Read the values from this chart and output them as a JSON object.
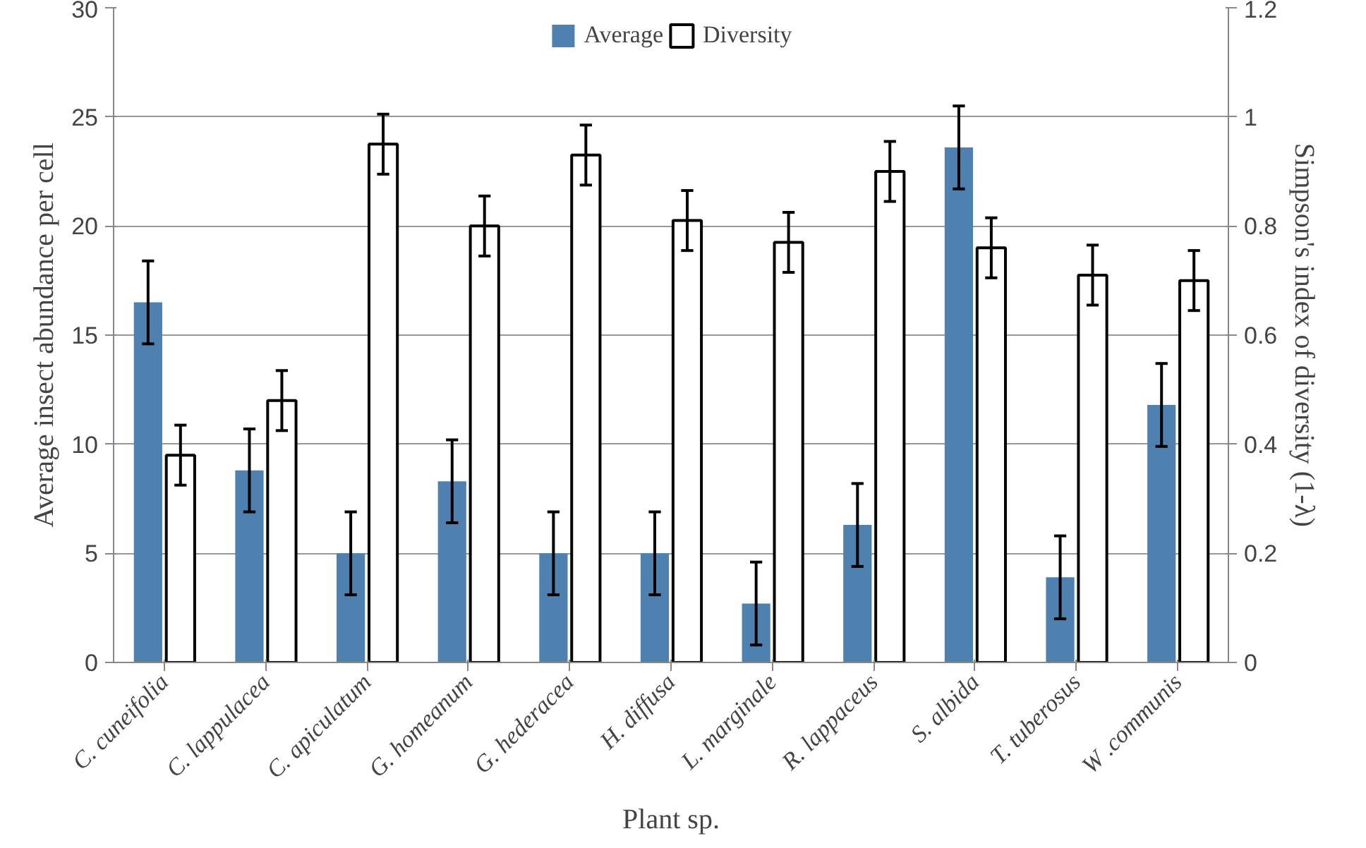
{
  "chart_data": {
    "type": "bar",
    "xlabel": "Plant sp.",
    "ylabel": "Average insect abundance per cell",
    "y2label": "Simpson's index of diversity (1-λ)",
    "categories": [
      "C. cuneifolia",
      "C. lappulacea",
      "C. apiculatum",
      "G. homeanum",
      "G. hederacea",
      "H. diffusa",
      "L. marginale",
      "R. lappaceus",
      "S. albida",
      "T. tuberosus",
      "W .communis"
    ],
    "series": [
      {
        "name": "Average",
        "color": "#4f81b0",
        "values": [
          16.5,
          8.8,
          5.0,
          8.3,
          5.0,
          5.0,
          2.7,
          6.3,
          23.6,
          3.9,
          11.8
        ],
        "errors": [
          1.9,
          1.9,
          1.9,
          1.9,
          1.9,
          1.9,
          1.9,
          1.9,
          1.9,
          1.9,
          1.9
        ]
      },
      {
        "name": "Diversity",
        "color": "#ffffff",
        "axis": "y2",
        "values": [
          0.38,
          0.48,
          0.95,
          0.8,
          0.93,
          0.81,
          0.77,
          0.9,
          0.76,
          0.71,
          0.7
        ],
        "errors": [
          0.055,
          0.055,
          0.055,
          0.055,
          0.055,
          0.055,
          0.055,
          0.055,
          0.055,
          0.055,
          0.055
        ]
      }
    ],
    "ylim": [
      0,
      30
    ],
    "yticks": [
      0,
      5,
      10,
      15,
      20,
      25,
      30
    ],
    "y2lim": [
      0,
      1.2
    ],
    "y2ticks": [
      0,
      0.2,
      0.4,
      0.6,
      0.8,
      1,
      1.2
    ],
    "grid": "y",
    "legend": "top"
  }
}
